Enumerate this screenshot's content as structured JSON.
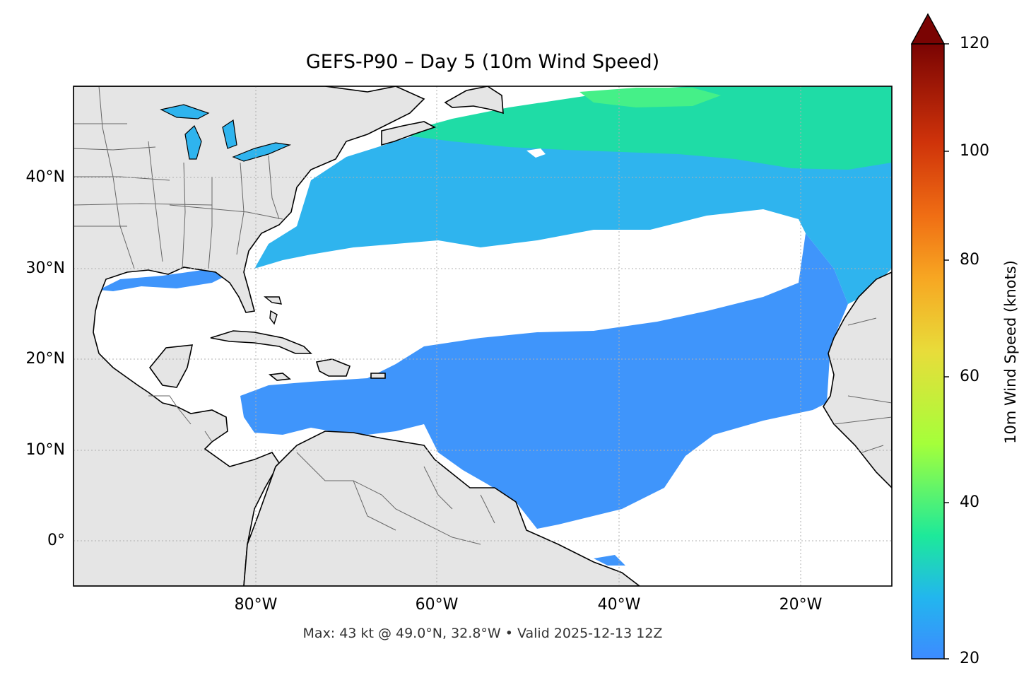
{
  "map": {
    "title": "GEFS-P90 – Day 5 (10m Wind Speed)",
    "caption": "Max: 43 kt @ 49.0°N, 32.8°W • Valid 2025-12-13 12Z",
    "lat_ticks": [
      "40°N",
      "30°N",
      "20°N",
      "10°N",
      "0°"
    ],
    "lon_ticks": [
      "80°W",
      "60°W",
      "40°W",
      "20°W"
    ],
    "extent": {
      "lon": [
        -100,
        -10
      ],
      "lat": [
        -5,
        50
      ]
    },
    "land_color": "#e5e5e5",
    "ocean_color": "#ffffff",
    "gridlines": true
  },
  "colorbar": {
    "label": "10m Wind Speed (knots)",
    "ticks": [
      "20",
      "40",
      "60",
      "80",
      "100",
      "120"
    ],
    "range": [
      20,
      120
    ],
    "extend": "max",
    "colormap": "turbo-like",
    "colors": [
      "#3d8bff",
      "#22c0e6",
      "#1de99a",
      "#a5ff3a",
      "#f0d53a",
      "#f79a22",
      "#e0450c",
      "#a21006",
      "#7a0403"
    ]
  },
  "chart_data": {
    "type": "heatmap",
    "title": "GEFS-P90 – Day 5 (10m Wind Speed)",
    "variable": "10m Wind Speed",
    "units": "knots",
    "range": [
      20,
      120
    ],
    "max": {
      "value": 43,
      "lat": 49.0,
      "lon": -32.8
    },
    "valid": "2025-12-13 12Z"
  }
}
